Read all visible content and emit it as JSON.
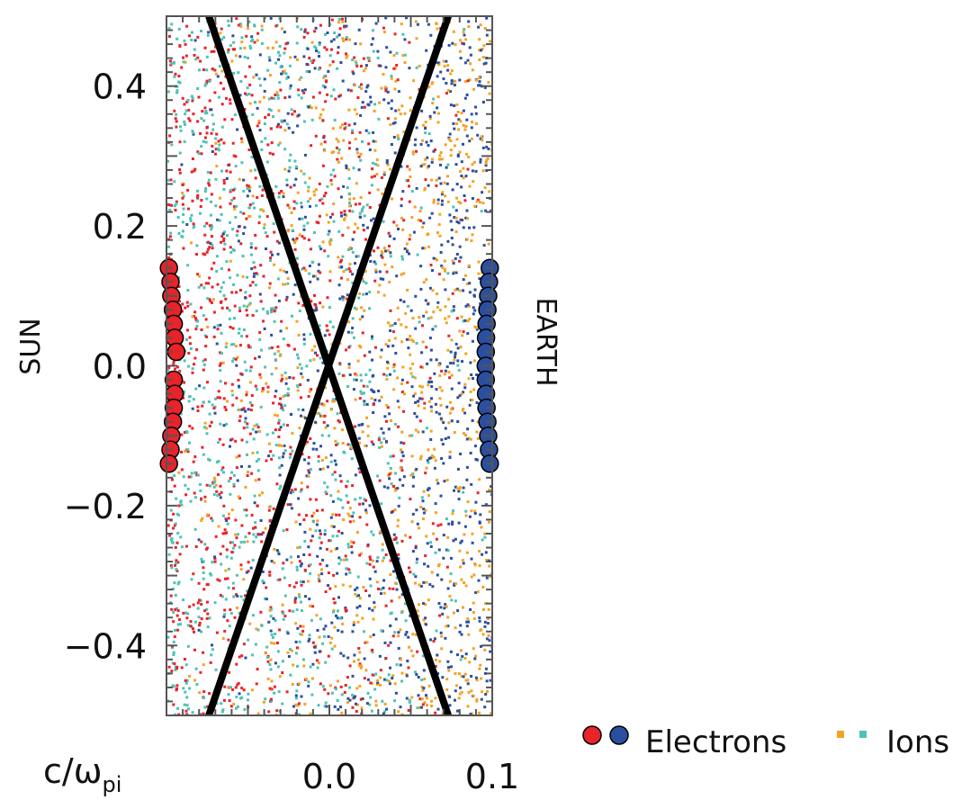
{
  "chart_data": {
    "type": "scatter",
    "title": "",
    "xlabel": "c/ω",
    "xlabel_subscript": "pi",
    "ylabel": "",
    "xlim": [
      -0.1,
      0.1
    ],
    "ylim": [
      -0.5,
      0.5
    ],
    "xticks": [
      0.0,
      0.1
    ],
    "xtick_labels": [
      "0.0",
      "0.1"
    ],
    "yticks": [
      0.4,
      0.2,
      0.0,
      -0.2,
      -0.4
    ],
    "ytick_labels": [
      "0.4",
      "0.2",
      "0.0",
      "−0.2",
      "−0.4"
    ],
    "left_side_label": "SUN",
    "right_side_label": "EARTH",
    "grid": false,
    "legend": {
      "placement": "bottom-right",
      "entries": [
        {
          "label": "Electrons",
          "colors": [
            "#e8232a",
            "#2b4fa0"
          ],
          "marker": "circle"
        },
        {
          "label": "Ions",
          "colors": [
            "#f3a324",
            "#4cc3b6"
          ],
          "marker": "dot"
        }
      ]
    },
    "colors": {
      "electrons_sun": "#e8232a",
      "electrons_earth": "#2b4fa0",
      "ions_sun": "#4cc3b6",
      "ions_earth": "#f3a324",
      "separatrix": "#000000"
    },
    "separatrix_lines": [
      {
        "name": "",
        "x": [
          -0.074,
          0.073
        ],
        "y": [
          0.5,
          -0.5
        ]
      },
      {
        "name": "",
        "x": [
          -0.074,
          0.073
        ],
        "y": [
          -0.5,
          0.5
        ]
      }
    ],
    "electron_markers_sun": {
      "x": [
        -0.0985,
        -0.0975,
        -0.097,
        -0.096,
        -0.0955,
        -0.095,
        -0.094,
        -0.0955,
        -0.095,
        -0.0955,
        -0.096,
        -0.097,
        -0.0975,
        -0.0985
      ],
      "y": [
        0.14,
        0.12,
        0.1,
        0.08,
        0.06,
        0.04,
        0.02,
        -0.02,
        -0.04,
        -0.06,
        -0.08,
        -0.1,
        -0.12,
        -0.14
      ]
    },
    "electron_markers_earth": {
      "x": [
        0.0985,
        0.098,
        0.0975,
        0.097,
        0.0965,
        0.0962,
        0.096,
        0.096,
        0.096,
        0.0962,
        0.0965,
        0.097,
        0.0975,
        0.098,
        0.0985
      ],
      "y": [
        0.14,
        0.12,
        0.1,
        0.08,
        0.06,
        0.04,
        0.02,
        0.0,
        -0.02,
        -0.04,
        -0.06,
        -0.08,
        -0.1,
        -0.12,
        -0.14
      ]
    },
    "scatter_point_estimate": 4000
  }
}
